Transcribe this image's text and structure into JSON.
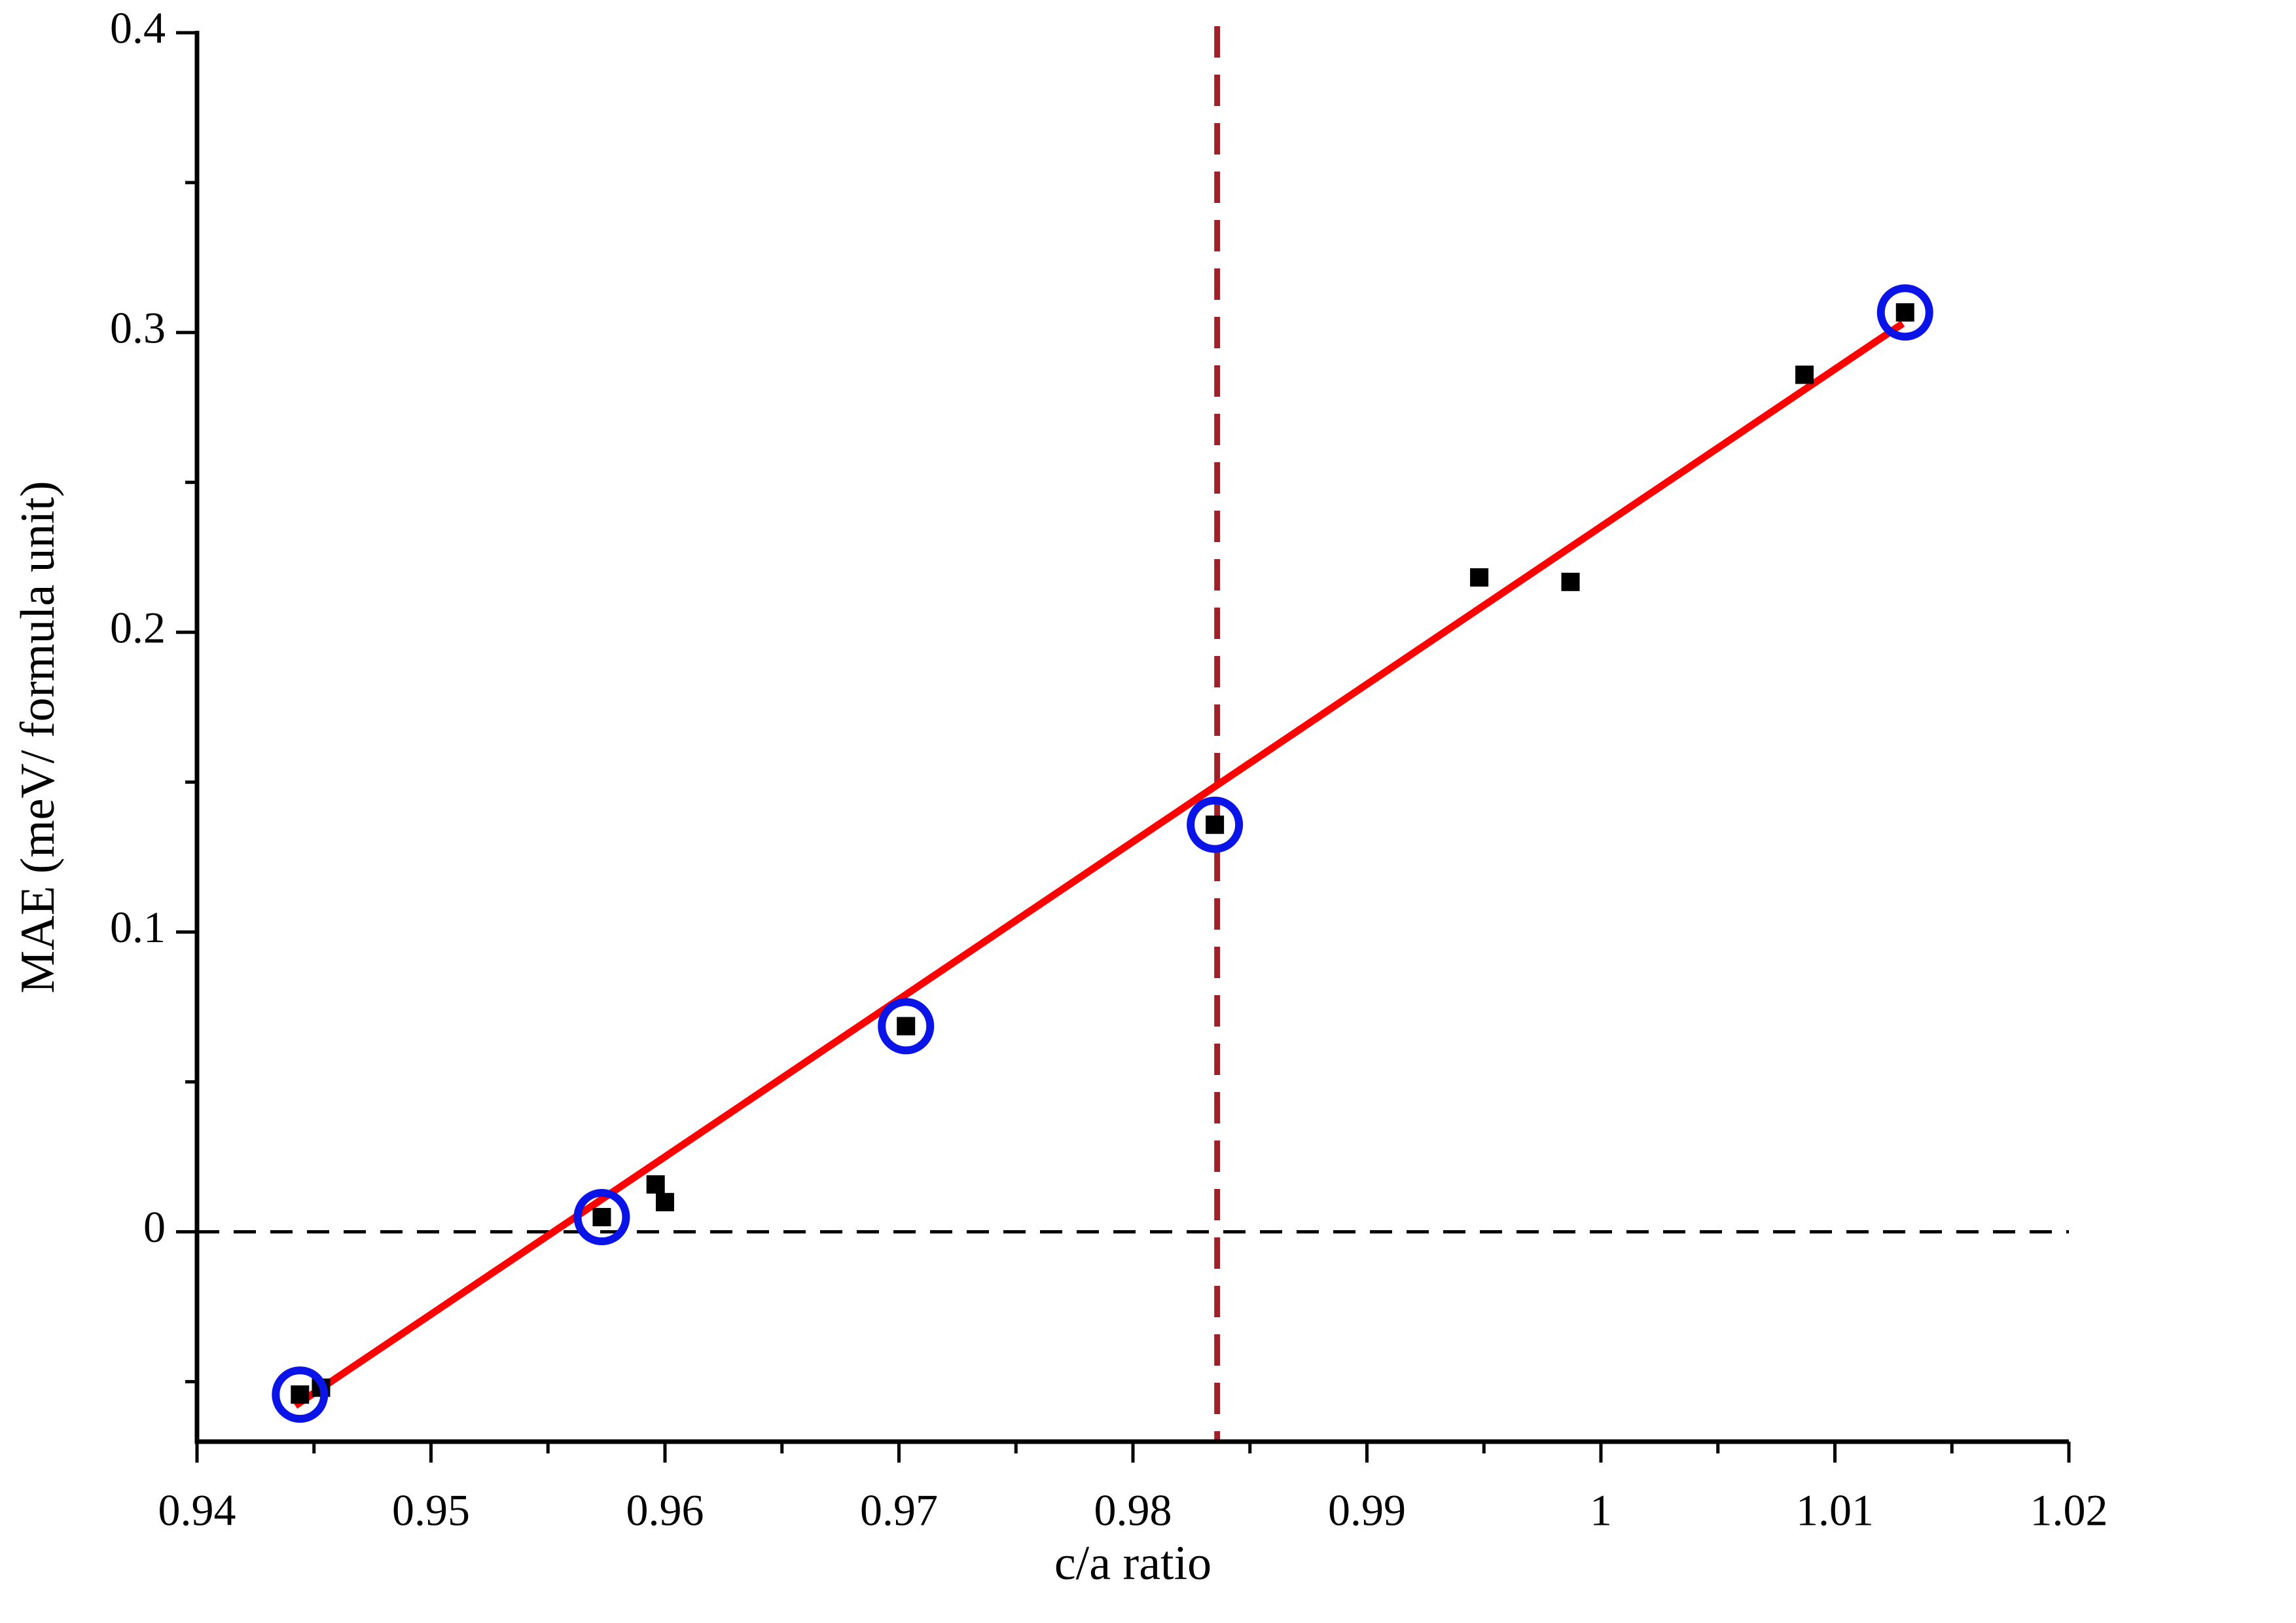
{
  "chart_data": {
    "type": "scatter",
    "x_label": "c/a ratio",
    "y_label": "MAE (meV/ formula unit)",
    "xlim": [
      0.94,
      1.02
    ],
    "ylim": [
      -0.07,
      0.4
    ],
    "xticks": [
      0.94,
      0.95,
      0.96,
      0.97,
      0.98,
      0.99,
      1,
      1.01,
      1.02
    ],
    "xminorticks": [
      0.945,
      0.955,
      0.965,
      0.975,
      0.985,
      0.995,
      1.005,
      1.015
    ],
    "yticks": [
      0,
      0.1,
      0.2,
      0.3,
      0.4
    ],
    "yminorticks": [
      -0.05,
      0.05,
      0.15,
      0.25,
      0.35
    ],
    "series": [
      {
        "kind": "square",
        "color": "#000000",
        "x": [
          0.9444,
          0.9453,
          0.9573,
          0.9596,
          0.96,
          0.9703,
          0.9835,
          0.9948,
          0.9987,
          1.0087,
          1.013
        ],
        "values": [
          -0.0543,
          -0.052,
          0.0049,
          0.0158,
          0.0099,
          0.0686,
          0.1358,
          0.2183,
          0.2168,
          0.2859,
          0.3067
        ]
      },
      {
        "kind": "circle",
        "color": "#0a14e6",
        "x": [
          0.9444,
          0.9573,
          0.9703,
          0.9835,
          1.013
        ],
        "values": [
          -0.0543,
          0.0049,
          0.0686,
          0.1358,
          0.3067
        ]
      },
      {
        "kind": "line",
        "color": "#ff0000",
        "x": [
          0.9442,
          1.0129
        ],
        "values": [
          -0.058,
          0.303
        ]
      }
    ],
    "vline": {
      "x": 0.9836,
      "color": "#a0202a"
    },
    "hline": {
      "y": 0,
      "color": "#000000"
    }
  }
}
